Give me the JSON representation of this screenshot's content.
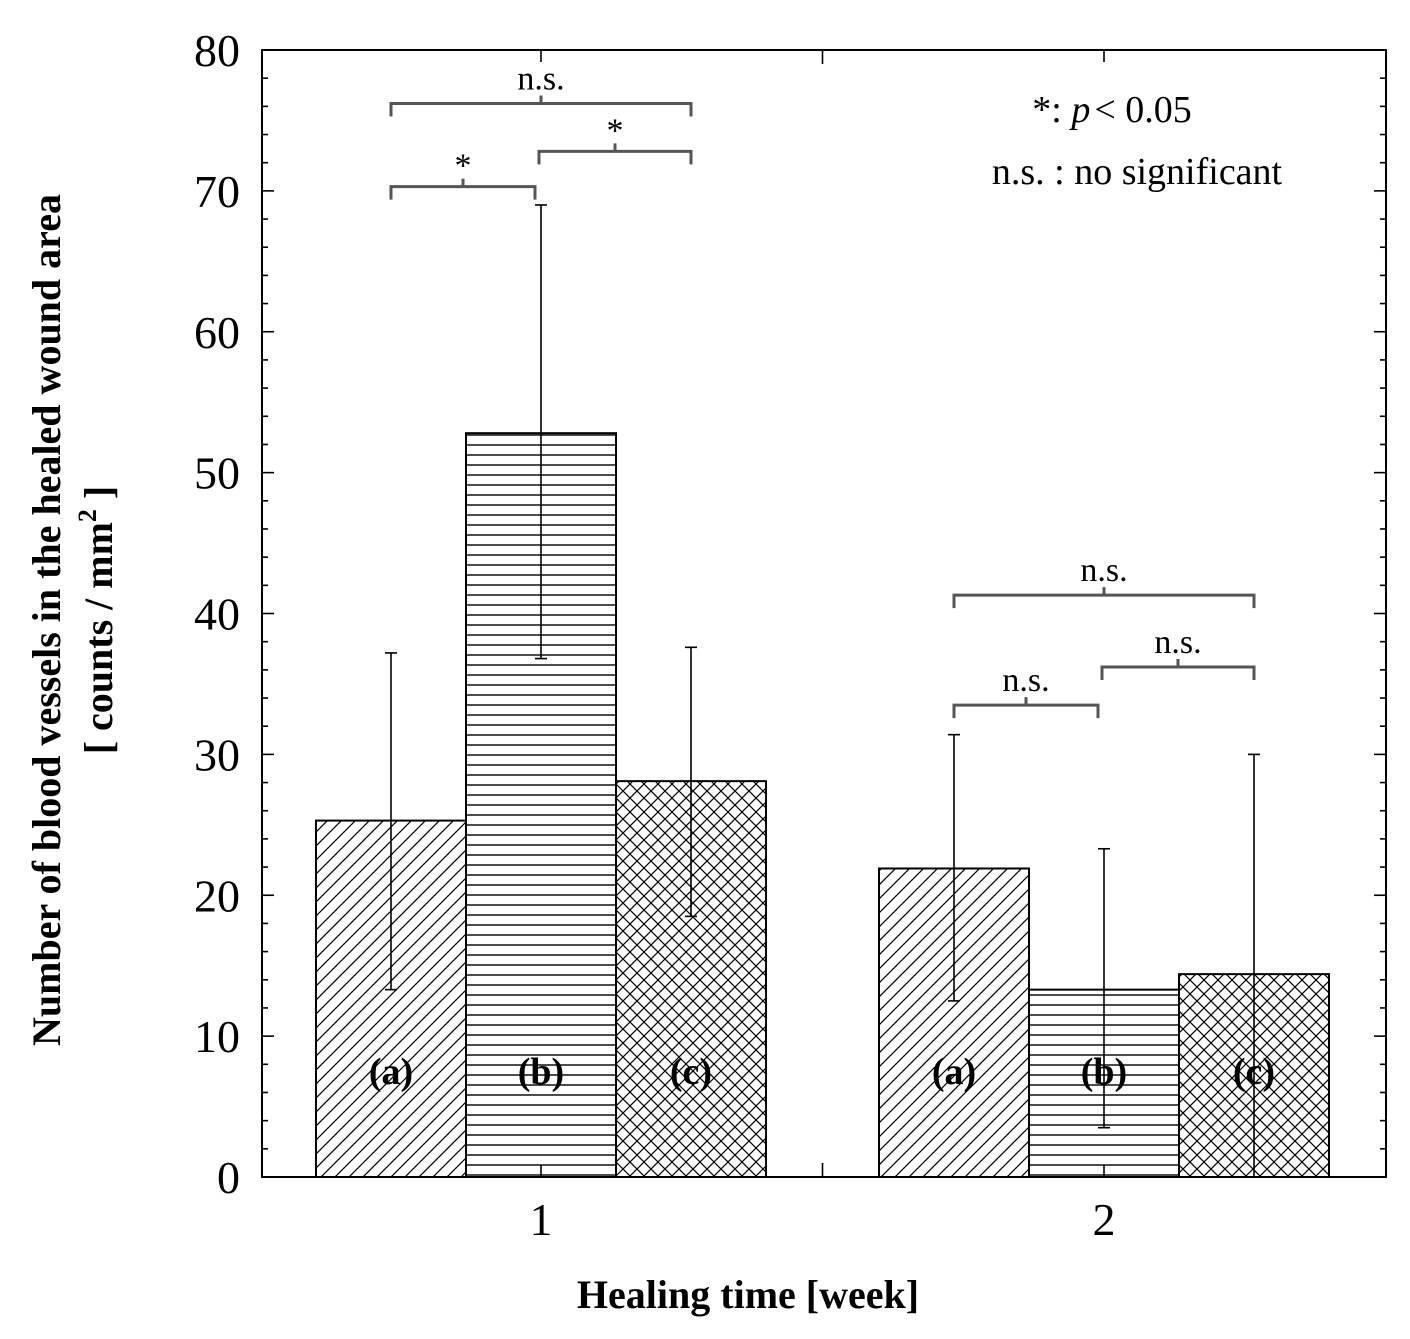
{
  "chart_data": {
    "type": "bar",
    "xlabel": "Healing time [week]",
    "ylabel_line1": "Number of blood vessels in the healed wound area",
    "ylabel_line2_prefix": "[ counts / mm",
    "ylabel_line2_sup": "2",
    "ylabel_line2_suffix": " ]",
    "ylim": [
      0,
      80
    ],
    "yticks": [
      0,
      10,
      20,
      30,
      40,
      50,
      60,
      70,
      80
    ],
    "categories": [
      "1",
      "2"
    ],
    "series": [
      {
        "name": "(a)",
        "pattern": "diagonal",
        "values": [
          25.3,
          21.9
        ],
        "errors_upper": [
          37.2,
          31.4
        ],
        "errors_lower": [
          13.3,
          12.5
        ]
      },
      {
        "name": "(b)",
        "pattern": "horizontal",
        "values": [
          52.8,
          13.3
        ],
        "errors_upper": [
          69.0,
          23.3
        ],
        "errors_lower": [
          36.8,
          3.5
        ]
      },
      {
        "name": "(c)",
        "pattern": "crosshatch",
        "values": [
          28.1,
          14.4
        ],
        "errors_upper": [
          37.6,
          30.0
        ],
        "errors_lower": [
          18.5,
          0
        ]
      }
    ],
    "significance": [
      {
        "group": 0,
        "from": 0,
        "to": 2,
        "label": "n.s.",
        "y": 76.2
      },
      {
        "group": 0,
        "from": 0,
        "to": 1,
        "label": "*",
        "y": 70.3
      },
      {
        "group": 0,
        "from": 1,
        "to": 2,
        "label": "*",
        "y": 72.8
      },
      {
        "group": 1,
        "from": 0,
        "to": 2,
        "label": "n.s.",
        "y": 41.3
      },
      {
        "group": 1,
        "from": 0,
        "to": 1,
        "label": "n.s.",
        "y": 33.5
      },
      {
        "group": 1,
        "from": 1,
        "to": 2,
        "label": "n.s.",
        "y": 36.2
      }
    ],
    "legend": {
      "star_prefix": "*: ",
      "p_symbol": "p",
      "star_suffix": "< 0.05",
      "ns_line": "n.s. : no significant"
    }
  }
}
